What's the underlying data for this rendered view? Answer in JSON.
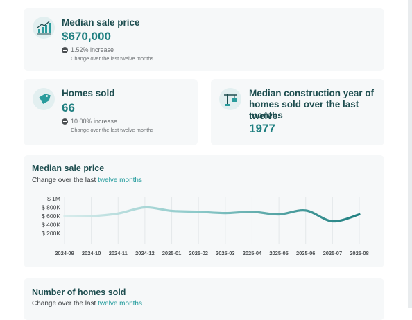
{
  "cards": {
    "median_price": {
      "title": "Median sale price",
      "value": "$670,000",
      "change": "1.52% increase",
      "note": "Change over the last twelve months",
      "icon": "chart-growth-icon"
    },
    "homes_sold": {
      "title": "Homes sold",
      "value": "66",
      "change": "10.00% increase",
      "note": "Change over the last twelve months",
      "icon": "price-tag-icon"
    },
    "construction_year": {
      "title_line1": "Median construction year of",
      "title_line2": "homes sold over the last twelve",
      "title_line3": "months",
      "value": "1977",
      "icon": "crane-icon"
    }
  },
  "price_chart": {
    "heading": "Median sale price",
    "subtitle_prefix": "Change over the last ",
    "subtitle_accent": "twelve months"
  },
  "homes_chart": {
    "heading": "Number of homes sold",
    "subtitle_prefix": "Change over the last ",
    "subtitle_accent": "twelve months"
  },
  "chart_data": {
    "type": "line",
    "categories": [
      "2024-09",
      "2024-10",
      "2024-11",
      "2024-12",
      "2025-01",
      "2025-02",
      "2025-03",
      "2025-04",
      "2025-05",
      "2025-06",
      "2025-07",
      "2025-08"
    ],
    "y_ticks": [
      "$ 1M",
      "$ 800K",
      "$ 600K",
      "$ 400K",
      "$ 200K"
    ],
    "y_tick_values": [
      1000000,
      800000,
      600000,
      400000,
      200000
    ],
    "values": [
      600000,
      600000,
      660000,
      800000,
      720000,
      700000,
      670000,
      700000,
      640000,
      730000,
      480000,
      640000
    ],
    "ylim": [
      200000,
      1000000
    ],
    "grid": true,
    "line_color_start": "#d8ecec",
    "line_color_end": "#1f7f80"
  }
}
